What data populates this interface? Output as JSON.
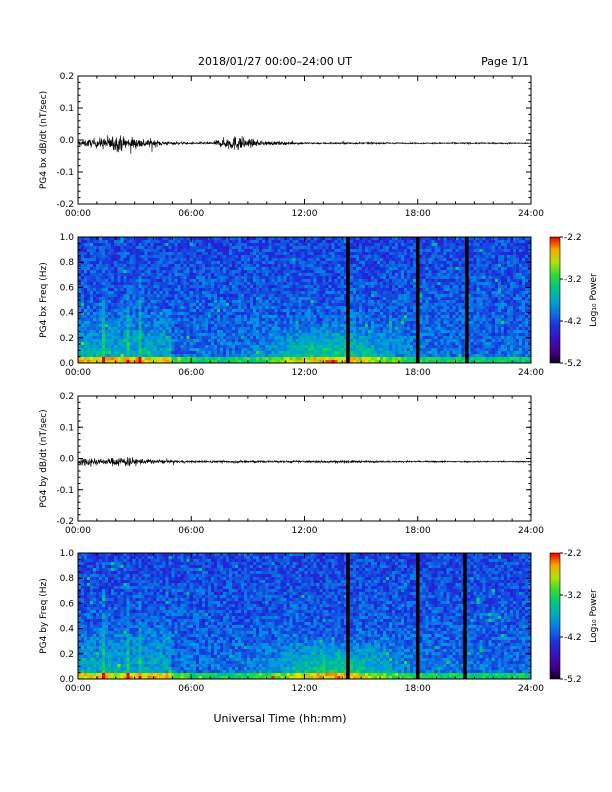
{
  "header": {
    "title": "2018/01/27  00:00–24:00 UT",
    "page": "Page 1/1"
  },
  "xlabel": "Universal Time (hh:mm)",
  "chart_data": [
    {
      "type": "line",
      "ylabel": "PG4 bx dB/dt (nT/sec)",
      "xlim": [
        0,
        24
      ],
      "ylim": [
        -0.2,
        0.2
      ],
      "x_tick_labels": [
        "00:00",
        "06:00",
        "12:00",
        "18:00",
        "24:00"
      ],
      "x_tick_values": [
        0,
        6,
        12,
        18,
        24
      ],
      "y_tick_labels": [
        "-0.2",
        "-0.1",
        "0.0",
        "0.1",
        "0.2"
      ],
      "y_tick_values": [
        -0.2,
        -0.1,
        0.0,
        0.1,
        0.2
      ],
      "envelope": {
        "x": [
          0,
          0.5,
          1.0,
          1.5,
          2.0,
          2.5,
          3.0,
          3.5,
          4.0,
          4.5,
          5.0,
          6.0,
          7.0,
          7.5,
          8.0,
          8.5,
          9.0,
          9.5,
          10.0,
          11.0,
          12.0,
          13.0,
          14.0,
          15.0,
          16.0,
          17.0,
          18.0,
          19.0,
          20.0,
          22.0,
          24.0
        ],
        "amplitude": [
          0.015,
          0.02,
          0.025,
          0.035,
          0.045,
          0.035,
          0.03,
          0.025,
          0.02,
          0.012,
          0.008,
          0.005,
          0.006,
          0.02,
          0.035,
          0.04,
          0.025,
          0.015,
          0.012,
          0.008,
          0.005,
          0.004,
          0.005,
          0.004,
          0.004,
          0.003,
          0.003,
          0.003,
          0.004,
          0.003,
          0.003
        ]
      }
    },
    {
      "type": "heatmap",
      "ylabel": "PG4 bx Freq (Hz)",
      "xlim": [
        0,
        24
      ],
      "ylim": [
        0,
        1.0
      ],
      "x_tick_labels": [
        "00:00",
        "06:00",
        "12:00",
        "18:00",
        "24:00"
      ],
      "x_tick_values": [
        0,
        6,
        12,
        18,
        24
      ],
      "y_tick_labels": [
        "0.0",
        "0.2",
        "0.4",
        "0.6",
        "0.8",
        "1.0"
      ],
      "y_tick_values": [
        0.0,
        0.2,
        0.4,
        0.6,
        0.8,
        1.0
      ],
      "colorbar": {
        "label": "Log₁₀ Power",
        "range": [
          -5.2,
          -2.2
        ],
        "tick_labels": [
          "-2.2",
          "-3.2",
          "-4.2",
          "-5.2"
        ],
        "tick_values": [
          -2.2,
          -3.2,
          -4.2,
          -5.2
        ]
      },
      "data_gaps": [
        14.3,
        18.0,
        20.6
      ]
    },
    {
      "type": "line",
      "ylabel": "PG4 by dB/dt (nT/sec)",
      "xlim": [
        0,
        24
      ],
      "ylim": [
        -0.2,
        0.2
      ],
      "x_tick_labels": [
        "00:00",
        "06:00",
        "12:00",
        "18:00",
        "24:00"
      ],
      "x_tick_values": [
        0,
        6,
        12,
        18,
        24
      ],
      "y_tick_labels": [
        "-0.2",
        "-0.1",
        "0.0",
        "0.1",
        "0.2"
      ],
      "y_tick_values": [
        -0.2,
        -0.1,
        0.0,
        0.1,
        0.2
      ],
      "envelope": {
        "x": [
          0,
          0.5,
          1.0,
          1.5,
          2.0,
          2.5,
          3.0,
          3.5,
          4.0,
          5.0,
          6.0,
          8.0,
          9.0,
          10.0,
          12.0,
          13.0,
          14.0,
          15.0,
          16.0,
          18.0,
          20.0,
          22.0,
          24.0
        ],
        "amplitude": [
          0.02,
          0.025,
          0.02,
          0.015,
          0.025,
          0.03,
          0.02,
          0.015,
          0.012,
          0.008,
          0.005,
          0.006,
          0.008,
          0.006,
          0.005,
          0.006,
          0.008,
          0.005,
          0.004,
          0.004,
          0.004,
          0.003,
          0.003
        ]
      }
    },
    {
      "type": "heatmap",
      "ylabel": "PG4 by Freq (Hz)",
      "xlim": [
        0,
        24
      ],
      "ylim": [
        0,
        1.0
      ],
      "x_tick_labels": [
        "00:00",
        "06:00",
        "12:00",
        "18:00",
        "24:00"
      ],
      "x_tick_values": [
        0,
        6,
        12,
        18,
        24
      ],
      "y_tick_labels": [
        "0.0",
        "0.2",
        "0.4",
        "0.6",
        "0.8",
        "1.0"
      ],
      "y_tick_values": [
        0.0,
        0.2,
        0.4,
        0.6,
        0.8,
        1.0
      ],
      "colorbar": {
        "label": "Log₁₀ Power",
        "range": [
          -5.2,
          -2.2
        ],
        "tick_labels": [
          "-2.2",
          "-3.2",
          "-4.2",
          "-5.2"
        ],
        "tick_values": [
          -2.2,
          -3.2,
          -4.2,
          -5.2
        ]
      },
      "data_gaps": [
        14.3,
        18.0,
        20.5
      ]
    }
  ]
}
